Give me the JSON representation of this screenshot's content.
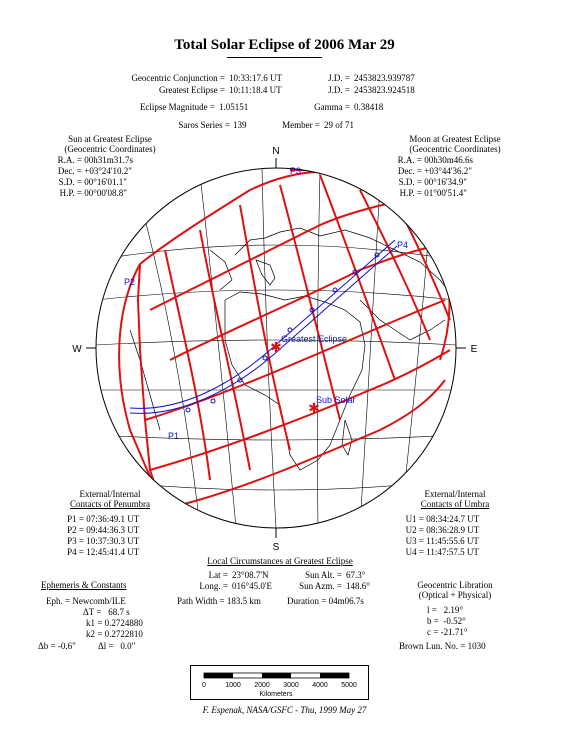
{
  "title": "Total Solar Eclipse of 2006 Mar 29",
  "header": {
    "conj_label": "Geocentric Conjunction =",
    "conj_value": "10:33:17.6 UT",
    "jd1_label": "J.D. =",
    "jd1_value": "2453823.939787",
    "ge_label": "Greatest Eclipse =",
    "ge_value": "10:11:18.4 UT",
    "jd2_label": "J.D. =",
    "jd2_value": "2453823.924518",
    "mag_label": "Eclipse Magnitude =",
    "mag_value": "1.05151",
    "gamma_label": "Gamma =",
    "gamma_value": "0.38418",
    "saros_label": "Saros Series =",
    "saros_value": "139",
    "member_label": "Member =",
    "member_value": "29 of 71"
  },
  "sun": {
    "heading1": "Sun at Greatest Eclipse",
    "heading2": "(Geocentric Coordinates)",
    "rows": [
      {
        "k": "R.A. =",
        "v": "00h31m31.7s"
      },
      {
        "k": "Dec. =",
        "v": "+03°24'10.2\""
      },
      {
        "k": "S.D. =",
        "v": "00°16'01.1\""
      },
      {
        "k": "H.P. =",
        "v": "00°00'08.8\""
      }
    ]
  },
  "moon": {
    "heading1": "Moon at Greatest Eclipse",
    "heading2": "(Geocentric Coordinates)",
    "rows": [
      {
        "k": "R.A. =",
        "v": "00h30m46.6s"
      },
      {
        "k": "Dec. =",
        "v": "+03°44'36.2\""
      },
      {
        "k": "S.D. =",
        "v": "00°16'34.9\""
      },
      {
        "k": "H.P. =",
        "v": "01°00'51.4\""
      }
    ]
  },
  "globe": {
    "north": "N",
    "south": "S",
    "east": "E",
    "west": "W",
    "labels": {
      "p1": "P1",
      "p2": "P2",
      "p3": "P3",
      "p4": "P4",
      "greatest": "Greatest Eclipse",
      "subsolar": "Sub Solar"
    },
    "colors": {
      "path": "#dd1111",
      "track": "#1111cc",
      "lines": "#000000"
    }
  },
  "penumbra": {
    "heading1": "External/Internal",
    "heading2": "Contacts of Penumbra",
    "rows": [
      {
        "k": "P1 =",
        "v": "07:36:49.1 UT"
      },
      {
        "k": "P2 =",
        "v": "09:44:36.3 UT"
      },
      {
        "k": "P3 =",
        "v": "10:37:30.3 UT"
      },
      {
        "k": "P4 =",
        "v": "12:45:41.4 UT"
      }
    ]
  },
  "umbra": {
    "heading1": "External/Internal",
    "heading2": "Contacts of Umbra",
    "rows": [
      {
        "k": "U1 =",
        "v": "08:34:24.7 UT"
      },
      {
        "k": "U2 =",
        "v": "08:36:28.9 UT"
      },
      {
        "k": "U3 =",
        "v": "11:45:55.6 UT"
      },
      {
        "k": "U4 =",
        "v": "11:47:57.5 UT"
      }
    ]
  },
  "local": {
    "heading": "Local Circumstances at Greatest Eclipse",
    "lat_label": "Lat =",
    "lat_value": "23°08.7'N",
    "long_label": "Long. =",
    "long_value": "016°45.0'E",
    "width_label": "Path Width =",
    "width_value": "183.5 km",
    "alt_label": "Sun Alt. =",
    "alt_value": "67.3°",
    "azm_label": "Sun Azm. =",
    "azm_value": "148.6°",
    "dur_label": "Duration =",
    "dur_value": "04m06.7s"
  },
  "ephem": {
    "heading": "Ephemeris & Constants",
    "eph": "Eph. = Newcomb/ILE",
    "dt_label": "ΔT =",
    "dt_value": "68.7 s",
    "k1_label": "k1 =",
    "k1_value": "0.2724880",
    "k2_label": "k2 =",
    "k2_value": "0.2722810",
    "db_label": "Δb =",
    "db_value": "-0.6\"",
    "dl_label": "Δl =",
    "dl_value": "0.0\""
  },
  "libration": {
    "heading1": "Geocentric Libration",
    "heading2": "(Optical + Physical)",
    "l_label": "l =",
    "l_value": "2.19°",
    "b_label": "b =",
    "b_value": "-0.52°",
    "c_label": "c =",
    "c_value": "-21.71°",
    "brown": "Brown Lun. No. = 1030"
  },
  "scale": {
    "ticks": [
      "0",
      "1000",
      "2000",
      "3000",
      "4000",
      "5000"
    ],
    "unit": "Kilometers"
  },
  "credit": "F. Espenak, NASA/GSFC - Thu, 1999 May 27"
}
